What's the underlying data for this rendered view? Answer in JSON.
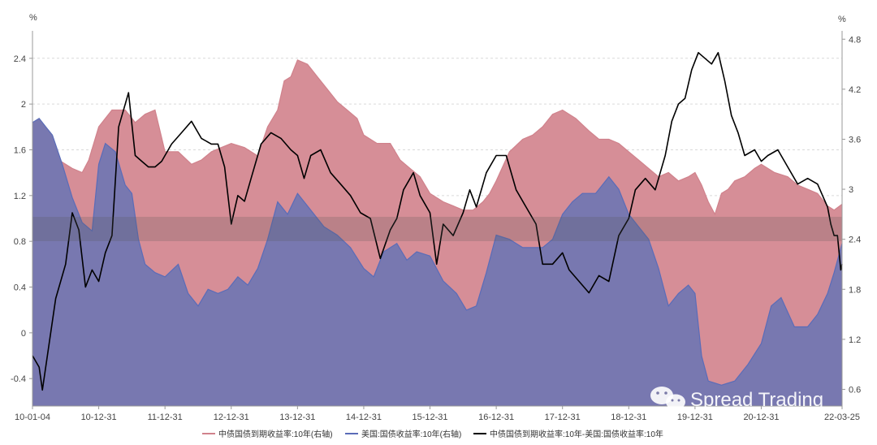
{
  "chart_data": {
    "type": "area",
    "left_unit": "%",
    "right_unit": "%",
    "left_ylim": [
      -0.64,
      2.64
    ],
    "right_ylim": [
      0.4,
      4.9
    ],
    "left_ticks": [
      "2.4",
      "2",
      "1.6",
      "1.2",
      "0.8",
      "0.4",
      "0",
      "-0.4"
    ],
    "left_tick_values": [
      2.4,
      2.0,
      1.6,
      1.2,
      0.8,
      0.4,
      0.0,
      -0.4
    ],
    "right_ticks": [
      "4.8",
      "4.2",
      "3.6",
      "3",
      "2.4",
      "1.8",
      "1.2",
      "0.6"
    ],
    "right_tick_values": [
      4.8,
      4.2,
      3.6,
      3.0,
      2.4,
      1.8,
      1.2,
      0.6
    ],
    "x_ticks": [
      "10-01-04",
      "10-12-31",
      "11-12-31",
      "12-12-31",
      "13-12-31",
      "14-12-31",
      "15-12-31",
      "16-12-31",
      "17-12-31",
      "18-12-31",
      "19-12-31",
      "20-12-31",
      "22-03-25"
    ],
    "x_tick_values": [
      2010.0,
      2011.0,
      2012.0,
      2013.0,
      2014.0,
      2015.0,
      2016.0,
      2017.0,
      2018.0,
      2019.0,
      2020.0,
      2021.0,
      2022.22
    ],
    "x_range": [
      2010.0,
      2022.22
    ],
    "grid": "horizontal dashed",
    "legend_position": "bottom",
    "series": [
      {
        "name": "中债国债到期收益率:10年(右轴)",
        "axis": "right",
        "style": "area",
        "color": "#d0828c",
        "fill": "#d68e97",
        "x": [
          2010.0,
          2010.15,
          2010.4,
          2010.6,
          2010.75,
          2010.85,
          2011.0,
          2011.2,
          2011.4,
          2011.55,
          2011.7,
          2011.85,
          2012.0,
          2012.2,
          2012.4,
          2012.55,
          2012.7,
          2012.85,
          2013.0,
          2013.2,
          2013.4,
          2013.55,
          2013.7,
          2013.8,
          2013.9,
          2014.0,
          2014.15,
          2014.3,
          2014.45,
          2014.6,
          2014.75,
          2014.9,
          2015.0,
          2015.2,
          2015.4,
          2015.55,
          2015.7,
          2015.85,
          2016.0,
          2016.2,
          2016.35,
          2016.5,
          2016.65,
          2016.8,
          2016.9,
          2017.0,
          2017.2,
          2017.4,
          2017.55,
          2017.7,
          2017.85,
          2018.0,
          2018.2,
          2018.4,
          2018.55,
          2018.7,
          2018.85,
          2019.0,
          2019.15,
          2019.3,
          2019.45,
          2019.6,
          2019.75,
          2019.9,
          2020.0,
          2020.1,
          2020.2,
          2020.3,
          2020.4,
          2020.5,
          2020.6,
          2020.75,
          2020.9,
          2021.0,
          2021.2,
          2021.4,
          2021.55,
          2021.7,
          2021.85,
          2022.0,
          2022.1,
          2022.22
        ],
        "values": [
          3.55,
          3.45,
          3.35,
          3.25,
          3.2,
          3.35,
          3.75,
          3.95,
          3.95,
          3.8,
          3.9,
          3.95,
          3.45,
          3.45,
          3.3,
          3.35,
          3.45,
          3.5,
          3.55,
          3.5,
          3.4,
          3.75,
          3.95,
          4.3,
          4.35,
          4.55,
          4.5,
          4.35,
          4.2,
          4.05,
          3.95,
          3.85,
          3.65,
          3.55,
          3.55,
          3.35,
          3.25,
          3.15,
          2.95,
          2.85,
          2.8,
          2.75,
          2.75,
          2.85,
          2.95,
          3.1,
          3.45,
          3.6,
          3.65,
          3.75,
          3.9,
          3.95,
          3.85,
          3.7,
          3.6,
          3.6,
          3.55,
          3.45,
          3.35,
          3.25,
          3.15,
          3.2,
          3.1,
          3.15,
          3.2,
          3.05,
          2.85,
          2.7,
          2.95,
          3.0,
          3.1,
          3.15,
          3.25,
          3.3,
          3.2,
          3.15,
          3.05,
          3.0,
          2.95,
          2.8,
          2.75,
          2.82
        ]
      },
      {
        "name": "美国:国债收益率:10年(右轴)",
        "axis": "right",
        "style": "area",
        "color": "#5a6cb8",
        "fill": "#7878b0",
        "x": [
          2010.0,
          2010.1,
          2010.2,
          2010.3,
          2010.45,
          2010.6,
          2010.75,
          2010.9,
          2011.0,
          2011.1,
          2011.25,
          2011.4,
          2011.5,
          2011.6,
          2011.7,
          2011.85,
          2012.0,
          2012.2,
          2012.35,
          2012.5,
          2012.65,
          2012.8,
          2012.95,
          2013.1,
          2013.25,
          2013.4,
          2013.55,
          2013.7,
          2013.85,
          2014.0,
          2014.2,
          2014.4,
          2014.6,
          2014.8,
          2015.0,
          2015.15,
          2015.3,
          2015.5,
          2015.65,
          2015.8,
          2016.0,
          2016.2,
          2016.4,
          2016.55,
          2016.7,
          2016.85,
          2017.0,
          2017.2,
          2017.4,
          2017.55,
          2017.7,
          2017.85,
          2018.0,
          2018.15,
          2018.3,
          2018.5,
          2018.7,
          2018.85,
          2019.0,
          2019.15,
          2019.3,
          2019.45,
          2019.6,
          2019.75,
          2019.9,
          2020.0,
          2020.1,
          2020.2,
          2020.4,
          2020.6,
          2020.8,
          2021.0,
          2021.15,
          2021.3,
          2021.5,
          2021.7,
          2021.85,
          2022.0,
          2022.1,
          2022.22
        ],
        "values": [
          3.8,
          3.85,
          3.75,
          3.65,
          3.3,
          2.9,
          2.6,
          2.5,
          3.3,
          3.55,
          3.45,
          3.05,
          2.95,
          2.4,
          2.1,
          2.0,
          1.95,
          2.1,
          1.75,
          1.6,
          1.8,
          1.75,
          1.8,
          1.95,
          1.85,
          2.05,
          2.4,
          2.85,
          2.7,
          2.95,
          2.75,
          2.55,
          2.45,
          2.3,
          2.05,
          1.95,
          2.25,
          2.35,
          2.15,
          2.25,
          2.2,
          1.9,
          1.75,
          1.55,
          1.6,
          2.0,
          2.45,
          2.4,
          2.3,
          2.3,
          2.3,
          2.4,
          2.7,
          2.85,
          2.95,
          2.95,
          3.15,
          3.0,
          2.7,
          2.55,
          2.4,
          2.05,
          1.6,
          1.75,
          1.85,
          1.75,
          1.0,
          0.7,
          0.65,
          0.7,
          0.9,
          1.15,
          1.6,
          1.7,
          1.35,
          1.35,
          1.5,
          1.75,
          2.0,
          2.35
        ]
      },
      {
        "name": "中债国债到期收益率:10年-美国:国债收益率:10年",
        "axis": "left",
        "style": "line",
        "color": "#000000",
        "x": [
          2010.0,
          2010.1,
          2010.15,
          2010.25,
          2010.35,
          2010.5,
          2010.6,
          2010.7,
          2010.8,
          2010.9,
          2011.0,
          2011.1,
          2011.2,
          2011.3,
          2011.45,
          2011.55,
          2011.65,
          2011.75,
          2011.85,
          2011.95,
          2012.1,
          2012.25,
          2012.4,
          2012.55,
          2012.7,
          2012.8,
          2012.9,
          2013.0,
          2013.1,
          2013.2,
          2013.3,
          2013.45,
          2013.6,
          2013.75,
          2013.9,
          2014.0,
          2014.1,
          2014.2,
          2014.35,
          2014.5,
          2014.65,
          2014.8,
          2014.95,
          2015.1,
          2015.25,
          2015.4,
          2015.5,
          2015.6,
          2015.75,
          2015.85,
          2016.0,
          2016.1,
          2016.2,
          2016.35,
          2016.5,
          2016.6,
          2016.7,
          2016.85,
          2017.0,
          2017.15,
          2017.3,
          2017.45,
          2017.6,
          2017.7,
          2017.85,
          2018.0,
          2018.1,
          2018.25,
          2018.4,
          2018.55,
          2018.7,
          2018.85,
          2019.0,
          2019.1,
          2019.25,
          2019.4,
          2019.55,
          2019.65,
          2019.75,
          2019.85,
          2019.95,
          2020.05,
          2020.15,
          2020.25,
          2020.35,
          2020.45,
          2020.55,
          2020.65,
          2020.75,
          2020.9,
          2021.0,
          2021.1,
          2021.25,
          2021.4,
          2021.55,
          2021.7,
          2021.85,
          2022.0,
          2022.05,
          2022.1,
          2022.15,
          2022.2,
          2022.22
        ],
        "values": [
          -0.2,
          -0.3,
          -0.5,
          -0.1,
          0.3,
          0.6,
          1.05,
          0.9,
          0.4,
          0.55,
          0.45,
          0.7,
          0.85,
          1.8,
          2.1,
          1.55,
          1.5,
          1.45,
          1.45,
          1.5,
          1.65,
          1.75,
          1.85,
          1.7,
          1.65,
          1.65,
          1.45,
          0.95,
          1.2,
          1.15,
          1.35,
          1.65,
          1.75,
          1.7,
          1.6,
          1.55,
          1.35,
          1.55,
          1.6,
          1.4,
          1.3,
          1.2,
          1.05,
          1.0,
          0.65,
          0.9,
          1.0,
          1.25,
          1.4,
          1.2,
          1.05,
          0.6,
          0.95,
          0.85,
          1.05,
          1.25,
          1.1,
          1.4,
          1.55,
          1.55,
          1.25,
          1.1,
          0.95,
          0.6,
          0.6,
          0.7,
          0.55,
          0.45,
          0.35,
          0.5,
          0.45,
          0.85,
          1.0,
          1.25,
          1.35,
          1.25,
          1.55,
          1.85,
          2.0,
          2.05,
          2.3,
          2.45,
          2.4,
          2.35,
          2.45,
          2.2,
          1.9,
          1.75,
          1.55,
          1.6,
          1.5,
          1.55,
          1.6,
          1.45,
          1.3,
          1.35,
          1.3,
          1.1,
          0.95,
          0.85,
          0.85,
          0.55,
          0.6
        ]
      }
    ]
  },
  "watermark": {
    "text": "Spread Trading",
    "icon": "wechat-icon"
  },
  "colors": {
    "china_fill": "#d68e97",
    "china_line": "#c8707c",
    "us_fill": "#7878b0",
    "us_line": "#5a6cb8",
    "spread_line": "#000000",
    "grid": "#d9d9d9",
    "band": "#555555"
  }
}
